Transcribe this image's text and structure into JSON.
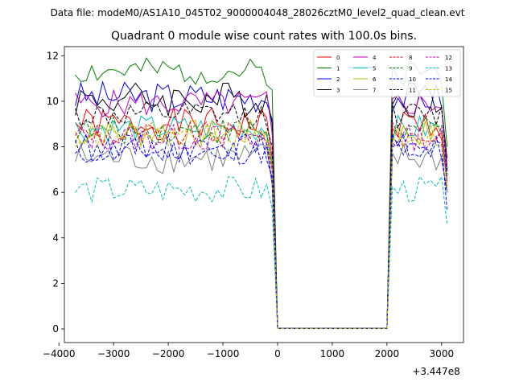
{
  "header": {
    "data_file_label": "Data file: modeM0/AS1A10_045T02_9000004048_28026cztM0_level2_quad_clean.evt"
  },
  "chart_data": {
    "type": "line",
    "title": "Quadrant 0 module wise count rates with 100.0s bins.",
    "xlabel": "",
    "ylabel": "",
    "x_offset_label": "+3.447e8",
    "xlim": [
      -3900,
      3400
    ],
    "ylim": [
      -0.6,
      12.4
    ],
    "x_ticks": [
      -4000,
      -3000,
      -2000,
      -1000,
      0,
      1000,
      2000,
      3000
    ],
    "x_tick_labels": [
      "−4000",
      "−3000",
      "−2000",
      "−1000",
      "0",
      "1000",
      "2000",
      "3000"
    ],
    "y_ticks": [
      0,
      2,
      4,
      6,
      8,
      10,
      12
    ],
    "y_tick_labels": [
      "0",
      "2",
      "4",
      "6",
      "8",
      "10",
      "12"
    ],
    "legend_position": "top-right",
    "gap": {
      "start": 0,
      "end": 2000,
      "value": 0.02
    },
    "segments": {
      "first": {
        "start": -3700,
        "end": -200,
        "step": 100
      },
      "second": {
        "start": 2100,
        "end": 3100,
        "step": 100
      }
    },
    "series": [
      {
        "name": "0",
        "color": "#ff0000",
        "dash": "solid",
        "base": 9.0,
        "amp": 0.35,
        "seed": 1,
        "drop": 7.5,
        "end_val": 6.5
      },
      {
        "name": "1",
        "color": "#008000",
        "dash": "solid",
        "base": 11.3,
        "amp": 0.3,
        "seed": 2,
        "drop": 10.5,
        "end_val": 8.0
      },
      {
        "name": "2",
        "color": "#0000ff",
        "dash": "solid",
        "base": 10.2,
        "amp": 0.35,
        "seed": 3,
        "drop": 9.2,
        "end_val": 7.0
      },
      {
        "name": "3",
        "color": "#000000",
        "dash": "solid",
        "base": 10.1,
        "amp": 0.4,
        "seed": 4,
        "drop": 9.0,
        "end_val": 7.5
      },
      {
        "name": "4",
        "color": "#bf00bf",
        "dash": "solid",
        "base": 9.9,
        "amp": 0.3,
        "seed": 5,
        "drop": 8.6,
        "end_val": 7.2
      },
      {
        "name": "5",
        "color": "#00bfbf",
        "dash": "solid",
        "base": 8.8,
        "amp": 0.3,
        "seed": 6,
        "drop": 7.4,
        "end_val": 6.7
      },
      {
        "name": "6",
        "color": "#bfbf00",
        "dash": "solid",
        "base": 8.6,
        "amp": 0.3,
        "seed": 7,
        "drop": 7.2,
        "end_val": 6.2
      },
      {
        "name": "7",
        "color": "#808080",
        "dash": "solid",
        "base": 7.5,
        "amp": 0.35,
        "seed": 8,
        "drop": 6.3,
        "end_val": 6.0
      },
      {
        "name": "8",
        "color": "#ff0000",
        "dash": "dashed",
        "base": 8.5,
        "amp": 0.3,
        "seed": 9,
        "drop": 7.0,
        "end_val": 6.3
      },
      {
        "name": "9",
        "color": "#008000",
        "dash": "dashed",
        "base": 8.7,
        "amp": 0.3,
        "seed": 10,
        "drop": 7.1,
        "end_val": 6.6
      },
      {
        "name": "10",
        "color": "#0000ff",
        "dash": "dashed",
        "base": 7.8,
        "amp": 0.3,
        "seed": 11,
        "drop": 6.4,
        "end_val": 5.2
      },
      {
        "name": "11",
        "color": "#000000",
        "dash": "dashed",
        "base": 9.4,
        "amp": 0.3,
        "seed": 12,
        "drop": 8.0,
        "end_val": 6.8
      },
      {
        "name": "12",
        "color": "#bf00bf",
        "dash": "dashed",
        "base": 8.4,
        "amp": 0.3,
        "seed": 13,
        "drop": 7.0,
        "end_val": 6.5
      },
      {
        "name": "13",
        "color": "#00bfbf",
        "dash": "dashed",
        "base": 6.1,
        "amp": 0.3,
        "seed": 14,
        "drop": 5.3,
        "end_val": 4.6
      },
      {
        "name": "14",
        "color": "#0000ff",
        "dash": "dashed",
        "base": 8.0,
        "amp": 0.3,
        "seed": 15,
        "drop": 6.7,
        "end_val": 6.0
      },
      {
        "name": "15",
        "color": "#bfbf00",
        "dash": "dashed",
        "base": 8.5,
        "amp": 0.3,
        "seed": 16,
        "drop": 7.1,
        "end_val": 6.4
      }
    ]
  }
}
